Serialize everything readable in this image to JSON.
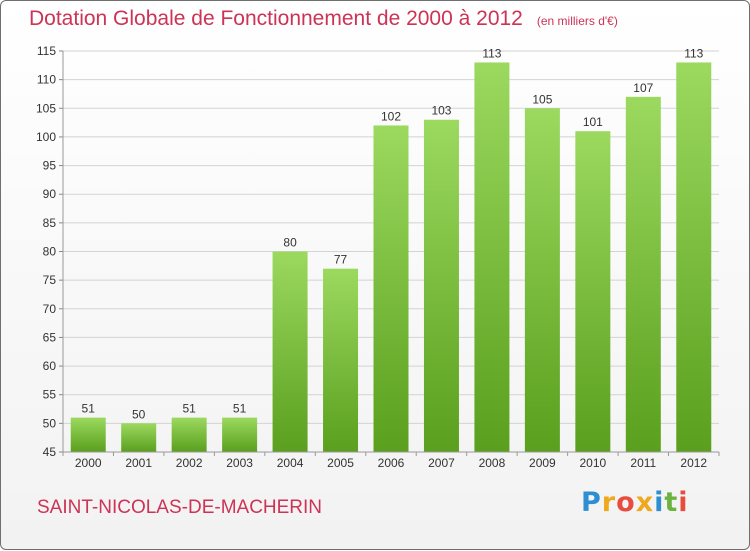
{
  "colors": {
    "accent": "#cc3355",
    "bar_light": "#9bd95f",
    "bar_dark": "#5a9f1d",
    "grid": "#d3d3d3",
    "axis_text": "#333333"
  },
  "title": {
    "main": "Dotation Globale de Fonctionnement de 2000 à 2012",
    "unit": "(en milliers d'€)"
  },
  "commune": "SAINT-NICOLAS-DE-MACHERIN",
  "brand": {
    "letters": [
      "P",
      "r",
      "o",
      "x",
      "i",
      "t",
      "i"
    ],
    "colors": [
      "#2b8fd1",
      "#f0a81e",
      "#e74c3c",
      "#f0a81e",
      "#2b8fd1",
      "#6cb33f",
      "#e74c3c"
    ]
  },
  "chart_data": {
    "type": "bar",
    "title": "Dotation Globale de Fonctionnement de 2000 à 2012",
    "subtitle": "(en milliers d'€)",
    "xlabel": "",
    "ylabel": "",
    "categories": [
      "2000",
      "2001",
      "2002",
      "2003",
      "2004",
      "2005",
      "2006",
      "2007",
      "2008",
      "2009",
      "2010",
      "2011",
      "2012"
    ],
    "values": [
      51,
      50,
      51,
      51,
      80,
      77,
      102,
      103,
      113,
      105,
      101,
      107,
      113
    ],
    "data_labels": [
      "51",
      "50",
      "51",
      "51",
      "80",
      "77",
      "102",
      "103",
      "113",
      "105",
      "101",
      "107",
      "113"
    ],
    "ylim": [
      45,
      115
    ],
    "yticks": [
      45,
      50,
      55,
      60,
      65,
      70,
      75,
      80,
      85,
      90,
      95,
      100,
      105,
      110,
      115
    ],
    "grid": true,
    "legend": "none"
  }
}
